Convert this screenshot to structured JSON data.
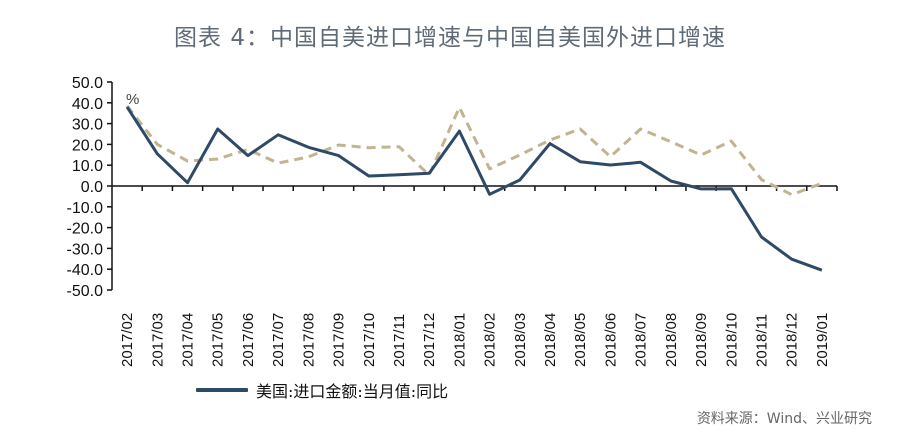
{
  "header": {
    "title": "图表 4：中国自美进口增速与中国自美国外进口增速"
  },
  "legend": {
    "items": [
      {
        "label": "美国:进口金额:当月值:同比",
        "color": "#2e4a66",
        "style": "solid"
      }
    ]
  },
  "footer": {
    "source": "资料来源：Wind、兴业研究"
  },
  "chart_data": {
    "type": "line",
    "title": "图表 4：中国自美进口增速与中国自美国外进口增速",
    "xlabel": "",
    "ylabel": "%",
    "ylim": [
      -50,
      50
    ],
    "yticks": [
      50,
      40,
      30,
      20,
      10,
      0,
      -10,
      -20,
      -30,
      -40,
      -50
    ],
    "ytick_labels": [
      "50.0",
      "40.0",
      "30.0",
      "20.0",
      "10.0",
      "0.0",
      "-10.0",
      "-20.0",
      "-30.0",
      "-40.0",
      "-50.0"
    ],
    "grid": false,
    "legend_position": "bottom-left",
    "categories": [
      "2017/02",
      "2017/03",
      "2017/04",
      "2017/05",
      "2017/06",
      "2017/07",
      "2017/08",
      "2017/09",
      "2017/10",
      "2017/11",
      "2017/12",
      "2018/01",
      "2018/02",
      "2018/03",
      "2018/04",
      "2018/05",
      "2018/06",
      "2018/07",
      "2018/08",
      "2018/09",
      "2018/10",
      "2018/11",
      "2018/12",
      "2019/01"
    ],
    "series": [
      {
        "name": "美国:进口金额:当月值:同比",
        "color": "#2e4a66",
        "style": "solid",
        "values": [
          38.0,
          15.5,
          1.6,
          27.4,
          14.6,
          24.6,
          18.6,
          14.6,
          4.8,
          5.4,
          6.1,
          26.4,
          -4.0,
          2.9,
          20.4,
          11.7,
          10.1,
          11.4,
          2.4,
          -1.4,
          -1.3,
          -24.5,
          -35.2,
          -40.5
        ]
      },
      {
        "name": "自美国外进口增速",
        "color": "#c2b391",
        "style": "dashed",
        "values": [
          38.5,
          20.0,
          12.0,
          13.0,
          17.6,
          11.0,
          14.0,
          19.7,
          18.4,
          18.9,
          5.3,
          37.8,
          8.2,
          14.9,
          22.1,
          27.4,
          14.1,
          27.4,
          21.3,
          14.9,
          21.6,
          3.1,
          -4.2,
          1.3
        ]
      }
    ]
  }
}
